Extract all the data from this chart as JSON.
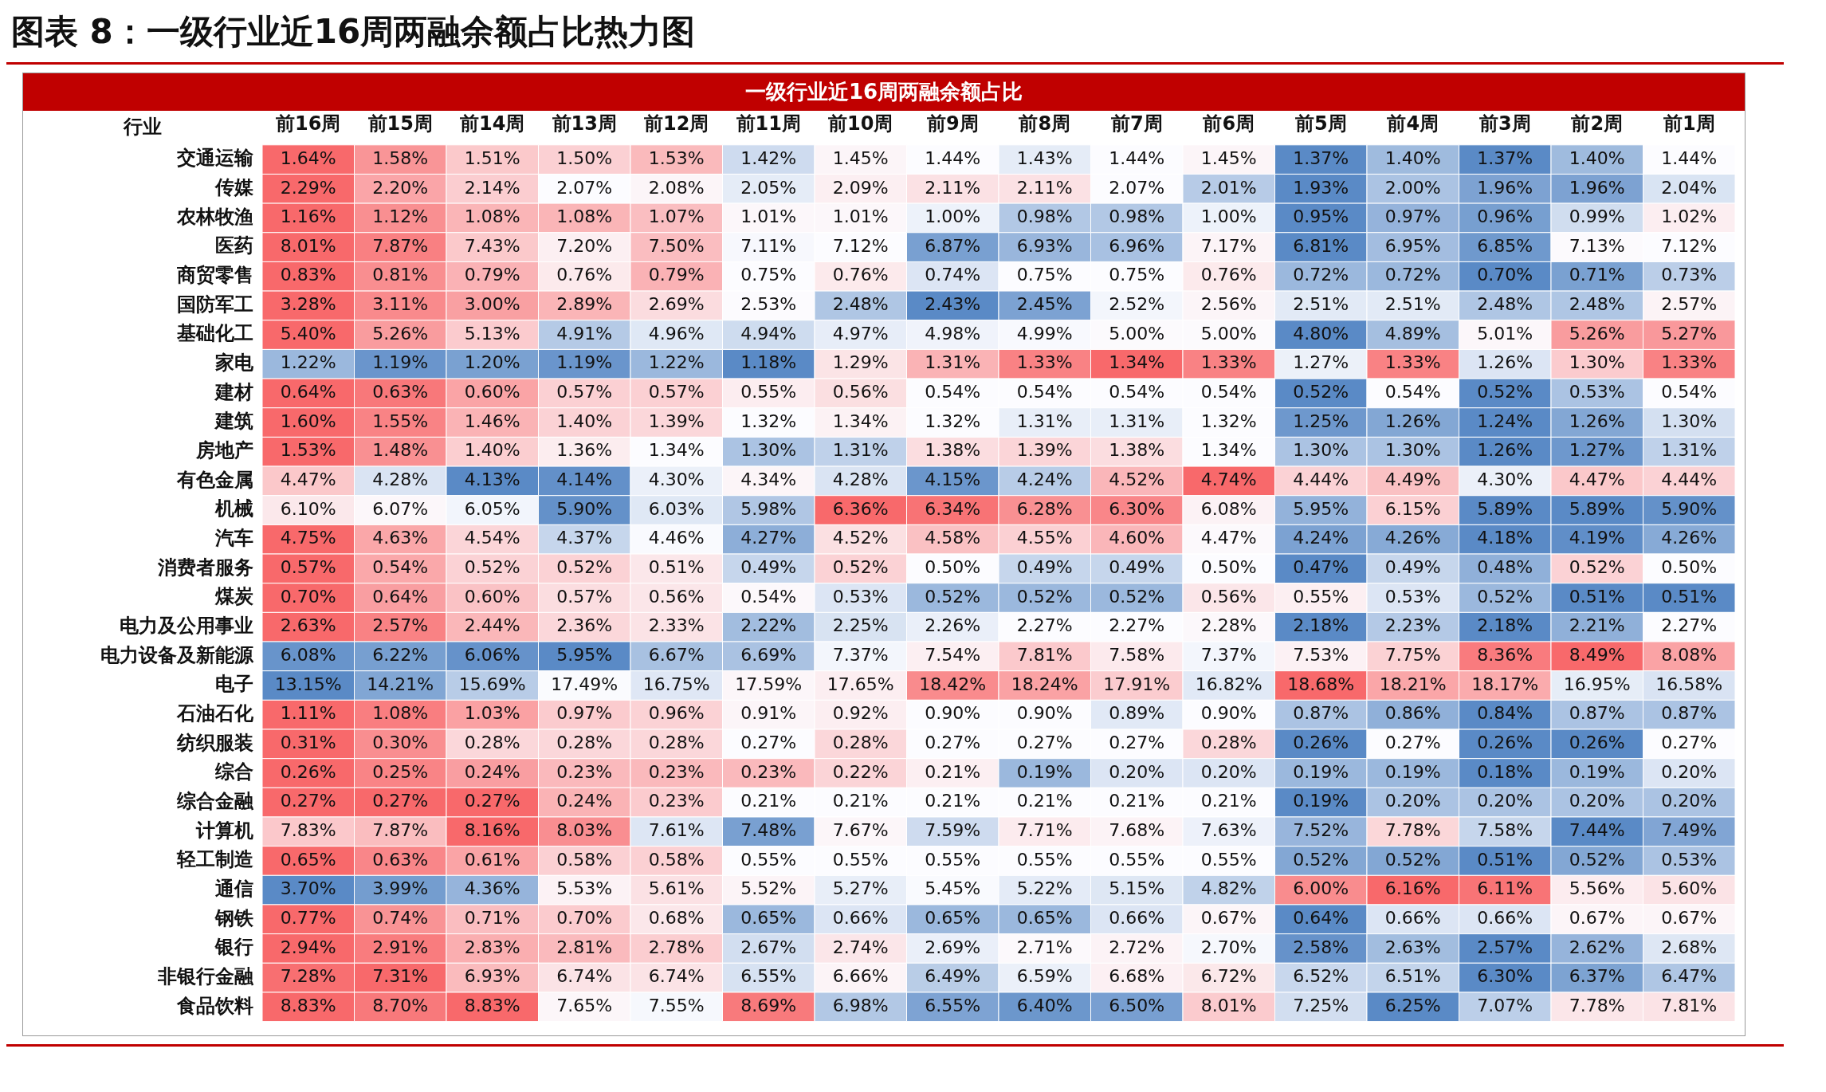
{
  "chart_data": {
    "type": "heatmap",
    "title": "图表 8：一级行业近16周两融余额占比热力图",
    "subtitle": "一级行业近16周两融余额占比",
    "ylabel": "行业",
    "categories": [
      "前16周",
      "前15周",
      "前14周",
      "前13周",
      "前12周",
      "前11周",
      "前10周",
      "前9周",
      "前8周",
      "前7周",
      "前6周",
      "前5周",
      "前4周",
      "前3周",
      "前2周",
      "前1周"
    ],
    "y_categories": [
      "交通运输",
      "传媒",
      "农林牧渔",
      "医药",
      "商贸零售",
      "国防军工",
      "基础化工",
      "家电",
      "建材",
      "建筑",
      "房地产",
      "有色金属",
      "机械",
      "汽车",
      "消费者服务",
      "煤炭",
      "电力及公用事业",
      "电力设备及新能源",
      "电子",
      "石油石化",
      "纺织服装",
      "综合",
      "综合金融",
      "计算机",
      "轻工制造",
      "通信",
      "钢铁",
      "银行",
      "非银行金融",
      "食品饮料"
    ],
    "cells": [
      [
        1.64,
        1.58,
        1.51,
        1.5,
        1.53,
        1.42,
        1.45,
        1.44,
        1.43,
        1.44,
        1.45,
        1.37,
        1.4,
        1.37,
        1.4,
        1.44
      ],
      [
        2.29,
        2.2,
        2.14,
        2.07,
        2.08,
        2.05,
        2.09,
        2.11,
        2.11,
        2.07,
        2.01,
        1.93,
        2.0,
        1.96,
        1.96,
        2.04
      ],
      [
        1.16,
        1.12,
        1.08,
        1.08,
        1.07,
        1.01,
        1.01,
        1.0,
        0.98,
        0.98,
        1.0,
        0.95,
        0.97,
        0.96,
        0.99,
        1.02
      ],
      [
        8.01,
        7.87,
        7.43,
        7.2,
        7.5,
        7.11,
        7.12,
        6.87,
        6.93,
        6.96,
        7.17,
        6.81,
        6.95,
        6.85,
        7.13,
        7.12
      ],
      [
        0.83,
        0.81,
        0.79,
        0.76,
        0.79,
        0.75,
        0.76,
        0.74,
        0.75,
        0.75,
        0.76,
        0.72,
        0.72,
        0.7,
        0.71,
        0.73
      ],
      [
        3.28,
        3.11,
        3.0,
        2.89,
        2.69,
        2.53,
        2.48,
        2.43,
        2.45,
        2.52,
        2.56,
        2.51,
        2.51,
        2.48,
        2.48,
        2.57
      ],
      [
        5.4,
        5.26,
        5.13,
        4.91,
        4.96,
        4.94,
        4.97,
        4.98,
        4.99,
        5.0,
        5.0,
        4.8,
        4.89,
        5.01,
        5.26,
        5.27
      ],
      [
        1.22,
        1.19,
        1.2,
        1.19,
        1.22,
        1.18,
        1.29,
        1.31,
        1.33,
        1.34,
        1.33,
        1.27,
        1.33,
        1.26,
        1.3,
        1.33
      ],
      [
        0.64,
        0.63,
        0.6,
        0.57,
        0.57,
        0.55,
        0.56,
        0.54,
        0.54,
        0.54,
        0.54,
        0.52,
        0.54,
        0.52,
        0.53,
        0.54
      ],
      [
        1.6,
        1.55,
        1.46,
        1.4,
        1.39,
        1.32,
        1.34,
        1.32,
        1.31,
        1.31,
        1.32,
        1.25,
        1.26,
        1.24,
        1.26,
        1.3
      ],
      [
        1.53,
        1.48,
        1.4,
        1.36,
        1.34,
        1.3,
        1.31,
        1.38,
        1.39,
        1.38,
        1.34,
        1.3,
        1.3,
        1.26,
        1.27,
        1.31
      ],
      [
        4.47,
        4.28,
        4.13,
        4.14,
        4.3,
        4.34,
        4.28,
        4.15,
        4.24,
        4.52,
        4.74,
        4.44,
        4.49,
        4.3,
        4.47,
        4.44
      ],
      [
        6.1,
        6.07,
        6.05,
        5.9,
        6.03,
        5.98,
        6.36,
        6.34,
        6.28,
        6.3,
        6.08,
        5.95,
        6.15,
        5.89,
        5.89,
        5.9
      ],
      [
        4.75,
        4.63,
        4.54,
        4.37,
        4.46,
        4.27,
        4.52,
        4.58,
        4.55,
        4.6,
        4.47,
        4.24,
        4.26,
        4.18,
        4.19,
        4.26
      ],
      [
        0.57,
        0.54,
        0.52,
        0.52,
        0.51,
        0.49,
        0.52,
        0.5,
        0.49,
        0.49,
        0.5,
        0.47,
        0.49,
        0.48,
        0.52,
        0.5
      ],
      [
        0.7,
        0.64,
        0.6,
        0.57,
        0.56,
        0.54,
        0.53,
        0.52,
        0.52,
        0.52,
        0.56,
        0.55,
        0.53,
        0.52,
        0.51,
        0.51
      ],
      [
        2.63,
        2.57,
        2.44,
        2.36,
        2.33,
        2.22,
        2.25,
        2.26,
        2.27,
        2.27,
        2.28,
        2.18,
        2.23,
        2.18,
        2.21,
        2.27
      ],
      [
        6.08,
        6.22,
        6.06,
        5.95,
        6.67,
        6.69,
        7.37,
        7.54,
        7.81,
        7.58,
        7.37,
        7.53,
        7.75,
        8.36,
        8.49,
        8.08
      ],
      [
        13.15,
        14.21,
        15.69,
        17.49,
        16.75,
        17.59,
        17.65,
        18.42,
        18.24,
        17.91,
        16.82,
        18.68,
        18.21,
        18.17,
        16.95,
        16.58
      ],
      [
        1.11,
        1.08,
        1.03,
        0.97,
        0.96,
        0.91,
        0.92,
        0.9,
        0.9,
        0.89,
        0.9,
        0.87,
        0.86,
        0.84,
        0.87,
        0.87
      ],
      [
        0.31,
        0.3,
        0.28,
        0.28,
        0.28,
        0.27,
        0.28,
        0.27,
        0.27,
        0.27,
        0.28,
        0.26,
        0.27,
        0.26,
        0.26,
        0.27
      ],
      [
        0.26,
        0.25,
        0.24,
        0.23,
        0.23,
        0.23,
        0.22,
        0.21,
        0.19,
        0.2,
        0.2,
        0.19,
        0.19,
        0.18,
        0.19,
        0.2
      ],
      [
        0.27,
        0.27,
        0.27,
        0.24,
        0.23,
        0.21,
        0.21,
        0.21,
        0.21,
        0.21,
        0.21,
        0.19,
        0.2,
        0.2,
        0.2,
        0.2
      ],
      [
        7.83,
        7.87,
        8.16,
        8.03,
        7.61,
        7.48,
        7.67,
        7.59,
        7.71,
        7.68,
        7.63,
        7.52,
        7.78,
        7.58,
        7.44,
        7.49
      ],
      [
        0.65,
        0.63,
        0.61,
        0.58,
        0.58,
        0.55,
        0.55,
        0.55,
        0.55,
        0.55,
        0.55,
        0.52,
        0.52,
        0.51,
        0.52,
        0.53
      ],
      [
        3.7,
        3.99,
        4.36,
        5.53,
        5.61,
        5.52,
        5.27,
        5.45,
        5.22,
        5.15,
        4.82,
        6.0,
        6.16,
        6.11,
        5.56,
        5.6
      ],
      [
        0.77,
        0.74,
        0.71,
        0.7,
        0.68,
        0.65,
        0.66,
        0.65,
        0.65,
        0.66,
        0.67,
        0.64,
        0.66,
        0.66,
        0.67,
        0.67
      ],
      [
        2.94,
        2.91,
        2.83,
        2.81,
        2.78,
        2.67,
        2.74,
        2.69,
        2.71,
        2.72,
        2.7,
        2.58,
        2.63,
        2.57,
        2.62,
        2.68
      ],
      [
        7.28,
        7.31,
        6.93,
        6.74,
        6.74,
        6.55,
        6.66,
        6.49,
        6.59,
        6.68,
        6.72,
        6.52,
        6.51,
        6.3,
        6.37,
        6.47
      ],
      [
        8.83,
        8.7,
        8.83,
        7.65,
        7.55,
        8.69,
        6.98,
        6.55,
        6.4,
        6.5,
        8.01,
        7.25,
        6.25,
        7.07,
        7.78,
        7.81
      ]
    ],
    "cell_labels": [
      [
        "1.64%",
        "1.58%",
        "1.51%",
        "1.50%",
        "1.53%",
        "1.42%",
        "1.45%",
        "1.44%",
        "1.43%",
        "1.44%",
        "1.45%",
        "1.37%",
        "1.40%",
        "1.37%",
        "1.40%",
        "1.44%"
      ],
      [
        "2.29%",
        "2.20%",
        "2.14%",
        "2.07%",
        "2.08%",
        "2.05%",
        "2.09%",
        "2.11%",
        "2.11%",
        "2.07%",
        "2.01%",
        "1.93%",
        "2.00%",
        "1.96%",
        "1.96%",
        "2.04%"
      ],
      [
        "1.16%",
        "1.12%",
        "1.08%",
        "1.08%",
        "1.07%",
        "1.01%",
        "1.01%",
        "1.00%",
        "0.98%",
        "0.98%",
        "1.00%",
        "0.95%",
        "0.97%",
        "0.96%",
        "0.99%",
        "1.02%"
      ],
      [
        "8.01%",
        "7.87%",
        "7.43%",
        "7.20%",
        "7.50%",
        "7.11%",
        "7.12%",
        "6.87%",
        "6.93%",
        "6.96%",
        "7.17%",
        "6.81%",
        "6.95%",
        "6.85%",
        "7.13%",
        "7.12%"
      ],
      [
        "0.83%",
        "0.81%",
        "0.79%",
        "0.76%",
        "0.79%",
        "0.75%",
        "0.76%",
        "0.74%",
        "0.75%",
        "0.75%",
        "0.76%",
        "0.72%",
        "0.72%",
        "0.70%",
        "0.71%",
        "0.73%"
      ],
      [
        "3.28%",
        "3.11%",
        "3.00%",
        "2.89%",
        "2.69%",
        "2.53%",
        "2.48%",
        "2.43%",
        "2.45%",
        "2.52%",
        "2.56%",
        "2.51%",
        "2.51%",
        "2.48%",
        "2.48%",
        "2.57%"
      ],
      [
        "5.40%",
        "5.26%",
        "5.13%",
        "4.91%",
        "4.96%",
        "4.94%",
        "4.97%",
        "4.98%",
        "4.99%",
        "5.00%",
        "5.00%",
        "4.80%",
        "4.89%",
        "5.01%",
        "5.26%",
        "5.27%"
      ],
      [
        "1.22%",
        "1.19%",
        "1.20%",
        "1.19%",
        "1.22%",
        "1.18%",
        "1.29%",
        "1.31%",
        "1.33%",
        "1.34%",
        "1.33%",
        "1.27%",
        "1.33%",
        "1.26%",
        "1.30%",
        "1.33%"
      ],
      [
        "0.64%",
        "0.63%",
        "0.60%",
        "0.57%",
        "0.57%",
        "0.55%",
        "0.56%",
        "0.54%",
        "0.54%",
        "0.54%",
        "0.54%",
        "0.52%",
        "0.54%",
        "0.52%",
        "0.53%",
        "0.54%"
      ],
      [
        "1.60%",
        "1.55%",
        "1.46%",
        "1.40%",
        "1.39%",
        "1.32%",
        "1.34%",
        "1.32%",
        "1.31%",
        "1.31%",
        "1.32%",
        "1.25%",
        "1.26%",
        "1.24%",
        "1.26%",
        "1.30%"
      ],
      [
        "1.53%",
        "1.48%",
        "1.40%",
        "1.36%",
        "1.34%",
        "1.30%",
        "1.31%",
        "1.38%",
        "1.39%",
        "1.38%",
        "1.34%",
        "1.30%",
        "1.30%",
        "1.26%",
        "1.27%",
        "1.31%"
      ],
      [
        "4.47%",
        "4.28%",
        "4.13%",
        "4.14%",
        "4.30%",
        "4.34%",
        "4.28%",
        "4.15%",
        "4.24%",
        "4.52%",
        "4.74%",
        "4.44%",
        "4.49%",
        "4.30%",
        "4.47%",
        "4.44%"
      ],
      [
        "6.10%",
        "6.07%",
        "6.05%",
        "5.90%",
        "6.03%",
        "5.98%",
        "6.36%",
        "6.34%",
        "6.28%",
        "6.30%",
        "6.08%",
        "5.95%",
        "6.15%",
        "5.89%",
        "5.89%",
        "5.90%"
      ],
      [
        "4.75%",
        "4.63%",
        "4.54%",
        "4.37%",
        "4.46%",
        "4.27%",
        "4.52%",
        "4.58%",
        "4.55%",
        "4.60%",
        "4.47%",
        "4.24%",
        "4.26%",
        "4.18%",
        "4.19%",
        "4.26%"
      ],
      [
        "0.57%",
        "0.54%",
        "0.52%",
        "0.52%",
        "0.51%",
        "0.49%",
        "0.52%",
        "0.50%",
        "0.49%",
        "0.49%",
        "0.50%",
        "0.47%",
        "0.49%",
        "0.48%",
        "0.52%",
        "0.50%"
      ],
      [
        "0.70%",
        "0.64%",
        "0.60%",
        "0.57%",
        "0.56%",
        "0.54%",
        "0.53%",
        "0.52%",
        "0.52%",
        "0.52%",
        "0.56%",
        "0.55%",
        "0.53%",
        "0.52%",
        "0.51%",
        "0.51%"
      ],
      [
        "2.63%",
        "2.57%",
        "2.44%",
        "2.36%",
        "2.33%",
        "2.22%",
        "2.25%",
        "2.26%",
        "2.27%",
        "2.27%",
        "2.28%",
        "2.18%",
        "2.23%",
        "2.18%",
        "2.21%",
        "2.27%"
      ],
      [
        "6.08%",
        "6.22%",
        "6.06%",
        "5.95%",
        "6.67%",
        "6.69%",
        "7.37%",
        "7.54%",
        "7.81%",
        "7.58%",
        "7.37%",
        "7.53%",
        "7.75%",
        "8.36%",
        "8.49%",
        "8.08%"
      ],
      [
        "13.15%",
        "14.21%",
        "15.69%",
        "17.49%",
        "16.75%",
        "17.59%",
        "17.65%",
        "18.42%",
        "18.24%",
        "17.91%",
        "16.82%",
        "18.68%",
        "18.21%",
        "18.17%",
        "16.95%",
        "16.58%"
      ],
      [
        "1.11%",
        "1.08%",
        "1.03%",
        "0.97%",
        "0.96%",
        "0.91%",
        "0.92%",
        "0.90%",
        "0.90%",
        "0.89%",
        "0.90%",
        "0.87%",
        "0.86%",
        "0.84%",
        "0.87%",
        "0.87%"
      ],
      [
        "0.31%",
        "0.30%",
        "0.28%",
        "0.28%",
        "0.28%",
        "0.27%",
        "0.28%",
        "0.27%",
        "0.27%",
        "0.27%",
        "0.28%",
        "0.26%",
        "0.27%",
        "0.26%",
        "0.26%",
        "0.27%"
      ],
      [
        "0.26%",
        "0.25%",
        "0.24%",
        "0.23%",
        "0.23%",
        "0.23%",
        "0.22%",
        "0.21%",
        "0.19%",
        "0.20%",
        "0.20%",
        "0.19%",
        "0.19%",
        "0.18%",
        "0.19%",
        "0.20%"
      ],
      [
        "0.27%",
        "0.27%",
        "0.27%",
        "0.24%",
        "0.23%",
        "0.21%",
        "0.21%",
        "0.21%",
        "0.21%",
        "0.21%",
        "0.21%",
        "0.19%",
        "0.20%",
        "0.20%",
        "0.20%",
        "0.20%"
      ],
      [
        "7.83%",
        "7.87%",
        "8.16%",
        "8.03%",
        "7.61%",
        "7.48%",
        "7.67%",
        "7.59%",
        "7.71%",
        "7.68%",
        "7.63%",
        "7.52%",
        "7.78%",
        "7.58%",
        "7.44%",
        "7.49%"
      ],
      [
        "0.65%",
        "0.63%",
        "0.61%",
        "0.58%",
        "0.58%",
        "0.55%",
        "0.55%",
        "0.55%",
        "0.55%",
        "0.55%",
        "0.55%",
        "0.52%",
        "0.52%",
        "0.51%",
        "0.52%",
        "0.53%"
      ],
      [
        "3.70%",
        "3.99%",
        "4.36%",
        "5.53%",
        "5.61%",
        "5.52%",
        "5.27%",
        "5.45%",
        "5.22%",
        "5.15%",
        "4.82%",
        "6.00%",
        "6.16%",
        "6.11%",
        "5.56%",
        "5.60%"
      ],
      [
        "0.77%",
        "0.74%",
        "0.71%",
        "0.70%",
        "0.68%",
        "0.65%",
        "0.66%",
        "0.65%",
        "0.65%",
        "0.66%",
        "0.67%",
        "0.64%",
        "0.66%",
        "0.66%",
        "0.67%",
        "0.67%"
      ],
      [
        "2.94%",
        "2.91%",
        "2.83%",
        "2.81%",
        "2.78%",
        "2.67%",
        "2.74%",
        "2.69%",
        "2.71%",
        "2.72%",
        "2.70%",
        "2.58%",
        "2.63%",
        "2.57%",
        "2.62%",
        "2.68%"
      ],
      [
        "7.28%",
        "7.31%",
        "6.93%",
        "6.74%",
        "6.74%",
        "6.55%",
        "6.66%",
        "6.49%",
        "6.59%",
        "6.68%",
        "6.72%",
        "6.52%",
        "6.51%",
        "6.30%",
        "6.37%",
        "6.47%"
      ],
      [
        "8.83%",
        "8.70%",
        "8.83%",
        "7.65%",
        "7.55%",
        "8.69%",
        "6.98%",
        "6.55%",
        "6.40%",
        "6.50%",
        "8.01%",
        "7.25%",
        "6.25%",
        "7.07%",
        "7.78%",
        "7.81%"
      ]
    ]
  }
}
